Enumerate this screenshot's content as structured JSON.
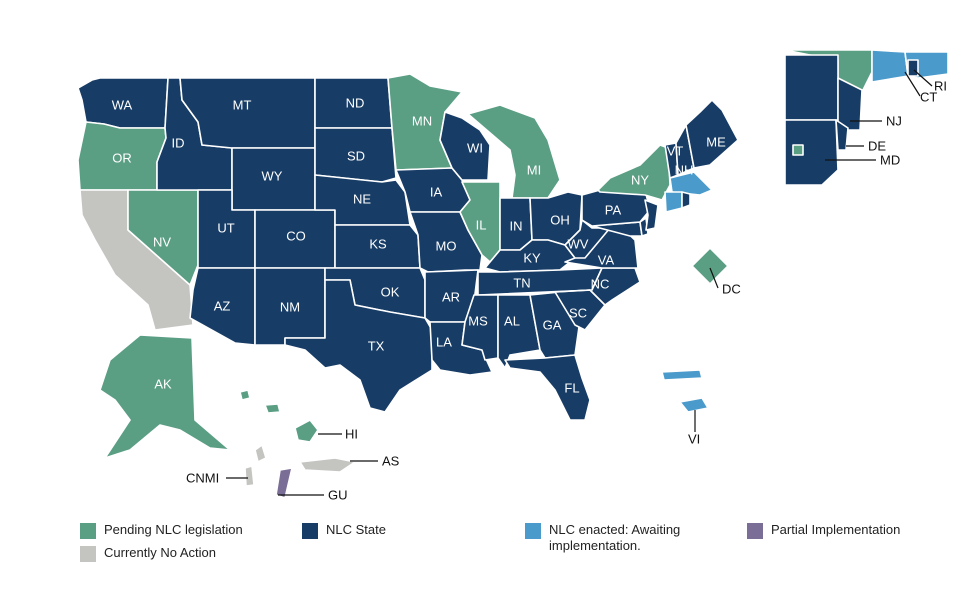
{
  "colors": {
    "nlc_state": "#173c66",
    "pending": "#5a9e84",
    "enacted_awaiting": "#4a9acb",
    "partial": "#7b6e96",
    "no_action": "#c4c4c1"
  },
  "legend": {
    "pending": "Pending NLC legislation",
    "nlc_state": "NLC State",
    "enacted_line1": "NLC enacted: Awaiting",
    "enacted_line2": "implementation.",
    "partial": "Partial Implementation",
    "no_action": "Currently No Action"
  },
  "states": {
    "WA": {
      "label": "WA",
      "status": "nlc_state"
    },
    "OR": {
      "label": "OR",
      "status": "pending"
    },
    "CA": {
      "label": "",
      "status": "no_action"
    },
    "ID": {
      "label": "ID",
      "status": "nlc_state"
    },
    "NV": {
      "label": "NV",
      "status": "pending"
    },
    "MT": {
      "label": "MT",
      "status": "nlc_state"
    },
    "WY": {
      "label": "WY",
      "status": "nlc_state"
    },
    "UT": {
      "label": "UT",
      "status": "nlc_state"
    },
    "AZ": {
      "label": "AZ",
      "status": "nlc_state"
    },
    "CO": {
      "label": "CO",
      "status": "nlc_state"
    },
    "NM": {
      "label": "NM",
      "status": "nlc_state"
    },
    "ND": {
      "label": "ND",
      "status": "nlc_state"
    },
    "SD": {
      "label": "SD",
      "status": "nlc_state"
    },
    "NE": {
      "label": "NE",
      "status": "nlc_state"
    },
    "KS": {
      "label": "KS",
      "status": "nlc_state"
    },
    "OK": {
      "label": "OK",
      "status": "nlc_state"
    },
    "TX": {
      "label": "TX",
      "status": "nlc_state"
    },
    "MN": {
      "label": "MN",
      "status": "pending"
    },
    "IA": {
      "label": "IA",
      "status": "nlc_state"
    },
    "MO": {
      "label": "MO",
      "status": "nlc_state"
    },
    "AR": {
      "label": "AR",
      "status": "nlc_state"
    },
    "LA": {
      "label": "LA",
      "status": "nlc_state"
    },
    "WI": {
      "label": "WI",
      "status": "nlc_state"
    },
    "IL": {
      "label": "IL",
      "status": "pending"
    },
    "MI": {
      "label": "MI",
      "status": "pending"
    },
    "IN": {
      "label": "IN",
      "status": "nlc_state"
    },
    "OH": {
      "label": "OH",
      "status": "nlc_state"
    },
    "KY": {
      "label": "KY",
      "status": "nlc_state"
    },
    "TN": {
      "label": "TN",
      "status": "nlc_state"
    },
    "MS": {
      "label": "MS",
      "status": "nlc_state"
    },
    "AL": {
      "label": "AL",
      "status": "nlc_state"
    },
    "GA": {
      "label": "GA",
      "status": "nlc_state"
    },
    "FL": {
      "label": "FL",
      "status": "nlc_state"
    },
    "SC": {
      "label": "SC",
      "status": "nlc_state"
    },
    "NC": {
      "label": "NC",
      "status": "nlc_state"
    },
    "VA": {
      "label": "VA",
      "status": "nlc_state"
    },
    "WV": {
      "label": "WV",
      "status": "nlc_state"
    },
    "PA": {
      "label": "PA",
      "status": "nlc_state"
    },
    "NY": {
      "label": "NY",
      "status": "pending"
    },
    "VT": {
      "label": "VT",
      "status": "nlc_state"
    },
    "NH": {
      "label": "NH",
      "status": "nlc_state"
    },
    "ME": {
      "label": "ME",
      "status": "nlc_state"
    },
    "MA": {
      "label": "",
      "status": "enacted_awaiting"
    },
    "CT": {
      "label": "CT",
      "status": "enacted_awaiting"
    },
    "RI": {
      "label": "RI",
      "status": "nlc_state"
    },
    "NJ": {
      "label": "NJ",
      "status": "nlc_state"
    },
    "DE": {
      "label": "DE",
      "status": "nlc_state"
    },
    "MD": {
      "label": "MD",
      "status": "nlc_state"
    },
    "DC": {
      "label": "DC",
      "status": "pending"
    },
    "AK": {
      "label": "AK",
      "status": "pending"
    },
    "HI": {
      "label": "HI",
      "status": "pending"
    },
    "VI": {
      "label": "VI",
      "status": "enacted_awaiting"
    },
    "PR": {
      "label": "",
      "status": "enacted_awaiting"
    },
    "GU": {
      "label": "GU",
      "status": "partial"
    },
    "CNMI": {
      "label": "CNMI",
      "status": "no_action"
    },
    "AS": {
      "label": "AS",
      "status": "no_action"
    }
  }
}
